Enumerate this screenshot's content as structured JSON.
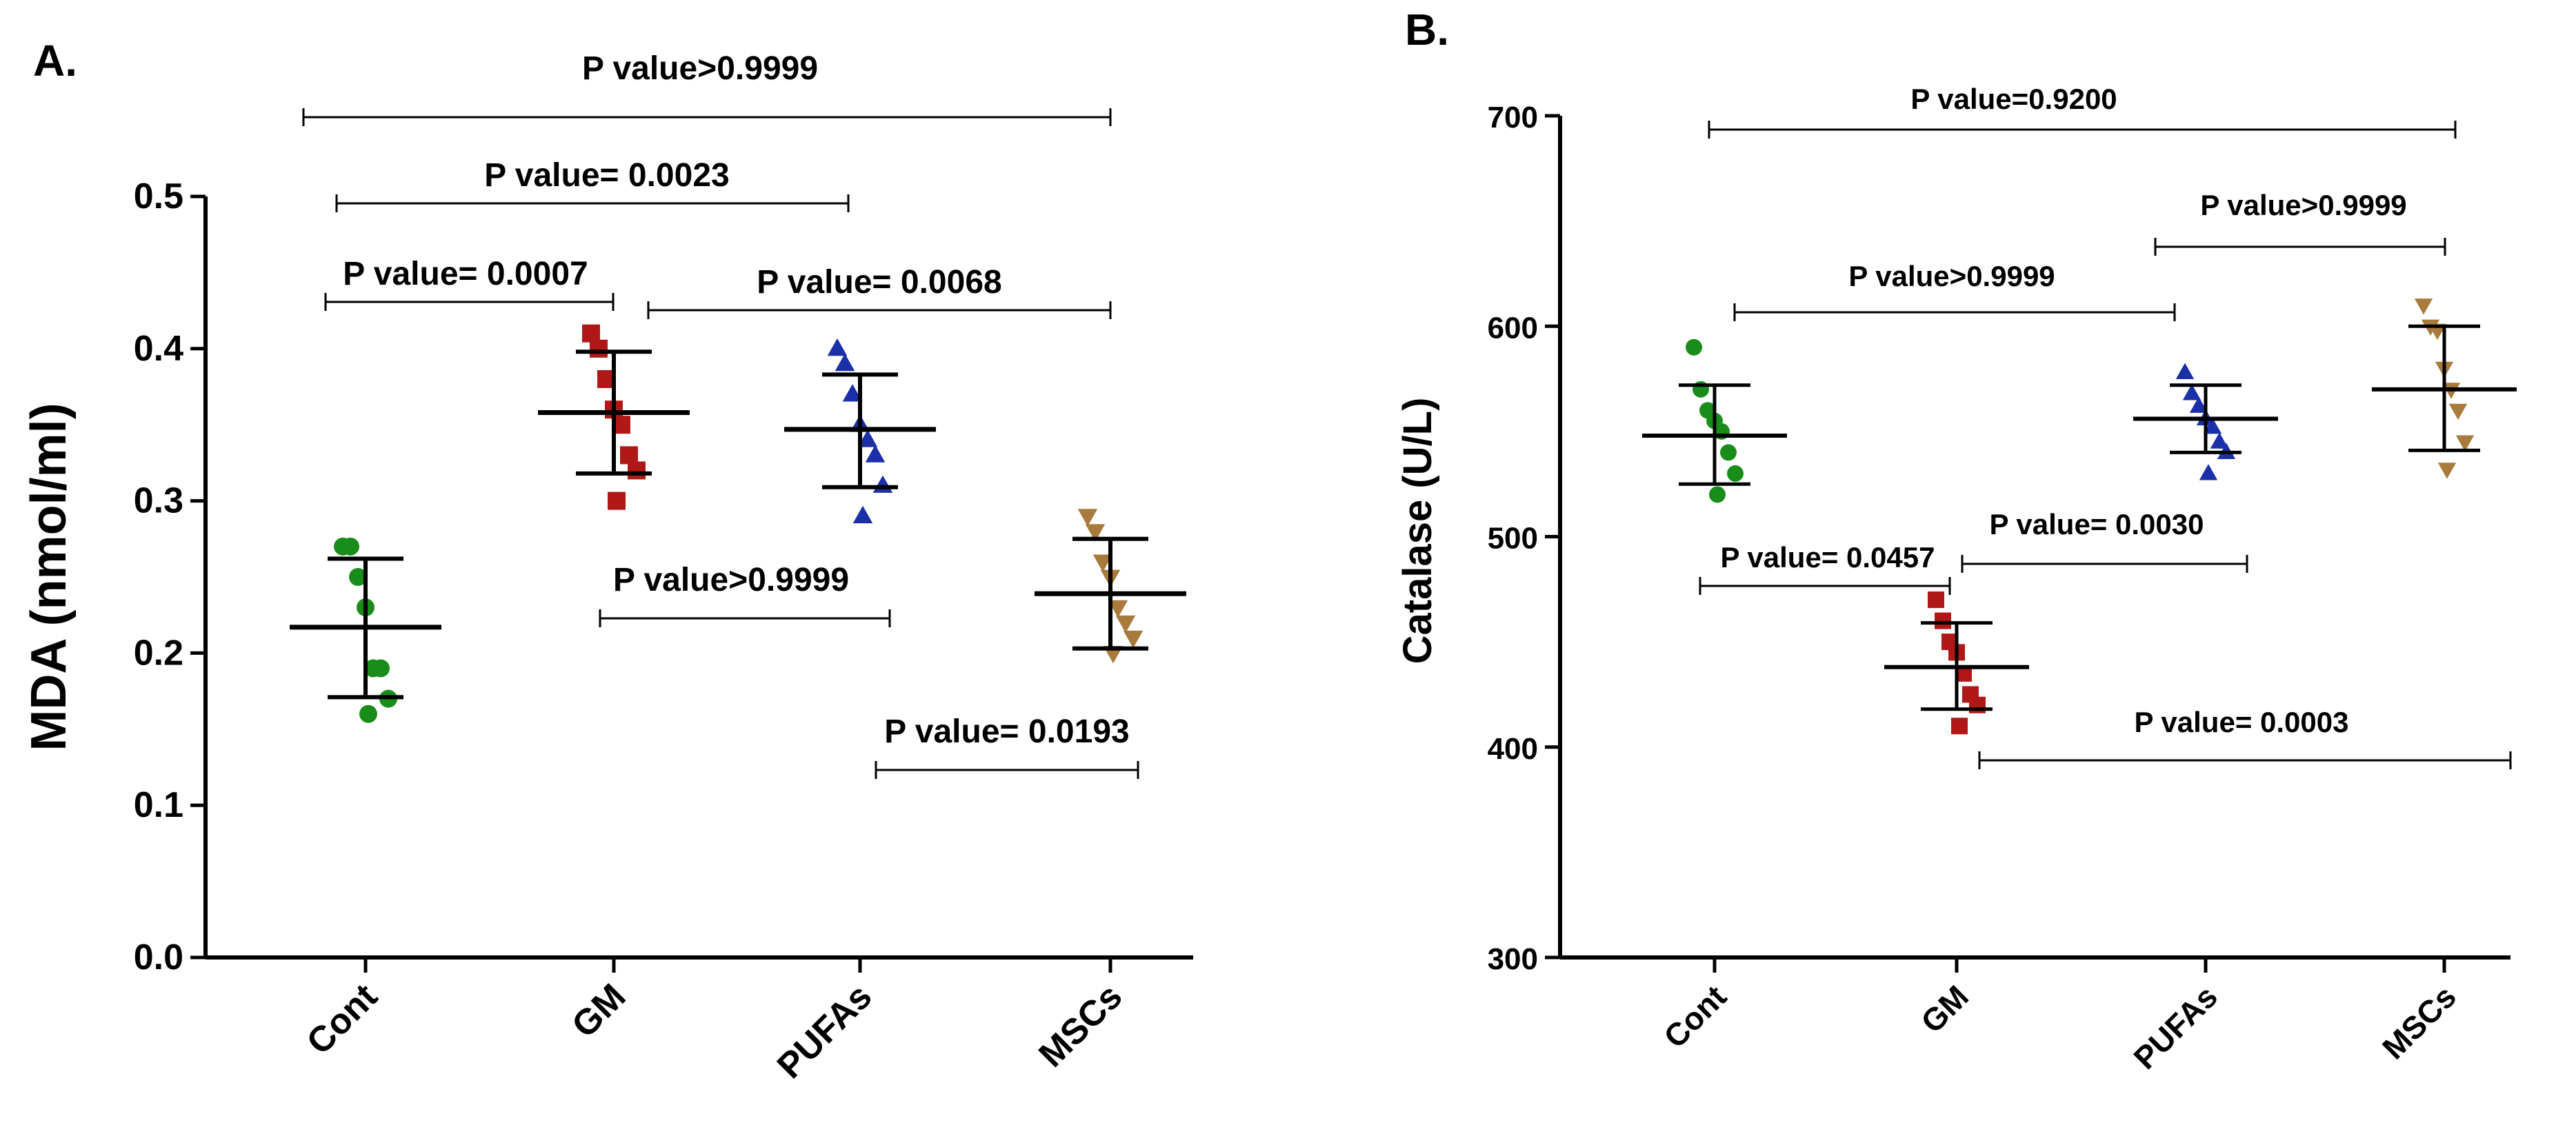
{
  "chart_data": [
    {
      "type": "scatter",
      "panel": "A.",
      "title": "",
      "xlabel": "",
      "ylabel": "MDA (nmol/ml)",
      "ylim": [
        0,
        0.5
      ],
      "yticks": [
        0.0,
        0.1,
        0.2,
        0.3,
        0.4,
        0.5
      ],
      "ytick_labels": [
        "0.0",
        "0.1",
        "0.2",
        "0.3",
        "0.4",
        "0.5"
      ],
      "categories": [
        "Cont",
        "GM",
        "PUFAs",
        "MSCs"
      ],
      "series": [
        {
          "name": "Cont",
          "marker": "circle",
          "color": "#1a8c1a",
          "points": [
            0.27,
            0.27,
            0.25,
            0.23,
            0.19,
            0.19,
            0.17,
            0.16
          ],
          "mean": 0.217,
          "sd_low": 0.171,
          "sd_high": 0.262
        },
        {
          "name": "GM",
          "marker": "square",
          "color": "#b01818",
          "points": [
            0.41,
            0.4,
            0.38,
            0.36,
            0.35,
            0.33,
            0.32,
            0.3
          ],
          "mean": 0.358,
          "sd_low": 0.318,
          "sd_high": 0.398
        },
        {
          "name": "PUFAs",
          "marker": "triangle-up",
          "color": "#1a2fa8",
          "points": [
            0.4,
            0.39,
            0.37,
            0.35,
            0.34,
            0.33,
            0.31,
            0.29
          ],
          "mean": 0.347,
          "sd_low": 0.309,
          "sd_high": 0.383
        },
        {
          "name": "MSCs",
          "marker": "triangle-down",
          "color": "#a87b3c",
          "points": [
            0.29,
            0.28,
            0.26,
            0.25,
            0.23,
            0.22,
            0.21,
            0.2
          ],
          "mean": 0.239,
          "sd_low": 0.203,
          "sd_high": 0.275
        }
      ],
      "comparisons": [
        {
          "label": "P value>0.9999",
          "from": "Cont",
          "to": "MSCs"
        },
        {
          "label": "P value= 0.0023",
          "from": "Cont",
          "to": "PUFAs"
        },
        {
          "label": "P value= 0.0007",
          "from": "Cont",
          "to": "GM"
        },
        {
          "label": "P value= 0.0068",
          "from": "GM",
          "to": "MSCs"
        },
        {
          "label": "P value>0.9999",
          "from": "GM",
          "to": "PUFAs"
        },
        {
          "label": "P value= 0.0193",
          "from": "PUFAs",
          "to": "MSCs"
        }
      ]
    },
    {
      "type": "scatter",
      "panel": "B.",
      "title": "",
      "xlabel": "",
      "ylabel": "Catalase (U/L)",
      "ylim": [
        300,
        700
      ],
      "yticks": [
        300,
        400,
        500,
        600,
        700
      ],
      "ytick_labels": [
        "300",
        "400",
        "500",
        "600",
        "700"
      ],
      "categories": [
        "Cont",
        "GM",
        "PUFAs",
        "MSCs"
      ],
      "series": [
        {
          "name": "Cont",
          "marker": "circle",
          "color": "#1a8c1a",
          "points": [
            590,
            570,
            560,
            555,
            550,
            540,
            530,
            520
          ],
          "mean": 548,
          "sd_low": 525,
          "sd_high": 572
        },
        {
          "name": "GM",
          "marker": "square",
          "color": "#b01818",
          "points": [
            470,
            460,
            450,
            445,
            435,
            425,
            420,
            410
          ],
          "mean": 438,
          "sd_low": 418,
          "sd_high": 459
        },
        {
          "name": "PUFAs",
          "marker": "triangle-up",
          "color": "#1a2fa8",
          "points": [
            578,
            568,
            562,
            556,
            552,
            545,
            540,
            530
          ],
          "mean": 556,
          "sd_low": 540,
          "sd_high": 572
        },
        {
          "name": "MSCs",
          "marker": "triangle-down",
          "color": "#a87b3c",
          "points": [
            610,
            600,
            598,
            580,
            570,
            560,
            545,
            532
          ],
          "mean": 570,
          "sd_low": 541,
          "sd_high": 600
        }
      ],
      "comparisons": [
        {
          "label": "P value=0.9200",
          "from": "Cont",
          "to": "MSCs"
        },
        {
          "label": "P value>0.9999",
          "from": "PUFAs",
          "to": "MSCs"
        },
        {
          "label": "P value>0.9999",
          "from": "Cont",
          "to": "PUFAs"
        },
        {
          "label": "P value= 0.0457",
          "from": "Cont",
          "to": "GM"
        },
        {
          "label": "P value= 0.0030",
          "from": "GM",
          "to": "PUFAs"
        },
        {
          "label": "P value= 0.0003",
          "from": "GM",
          "to": "MSCs"
        }
      ]
    }
  ]
}
